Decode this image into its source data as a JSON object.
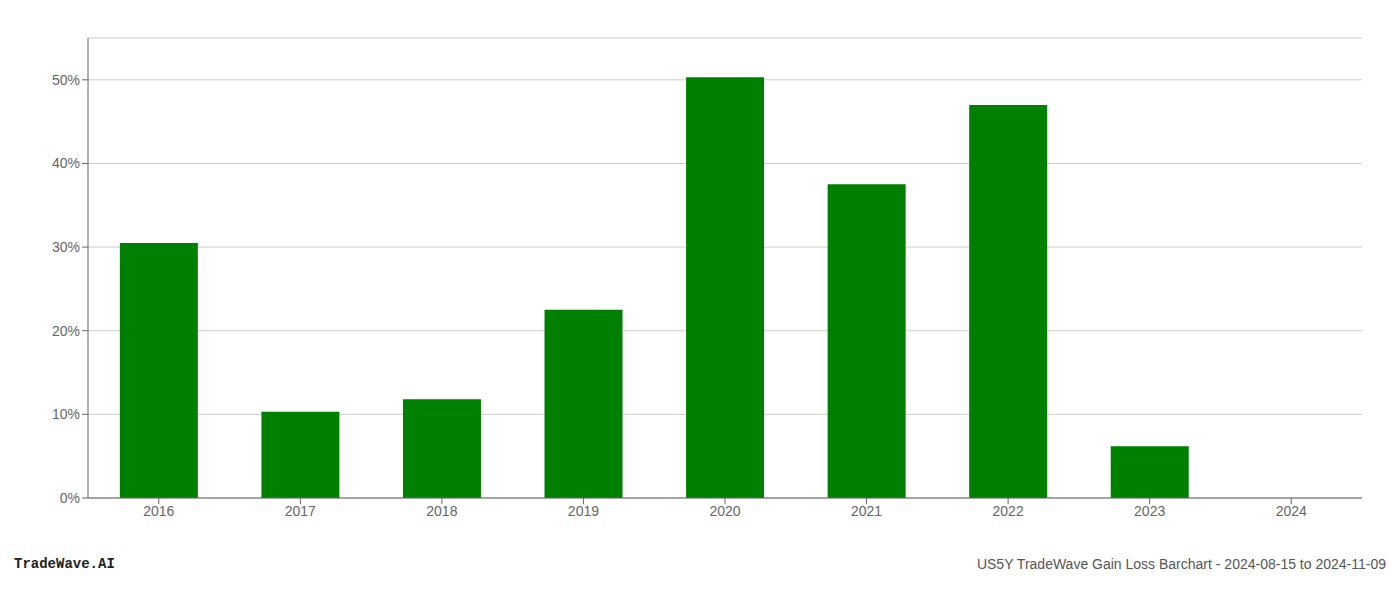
{
  "chart_data": {
    "type": "bar",
    "title": "US5Y TradeWave Gain Loss Barchart - 2024-08-15 to 2024-11-09",
    "subtitle": "TradeWave.AI",
    "categories": [
      "2016",
      "2017",
      "2018",
      "2019",
      "2020",
      "2021",
      "2022",
      "2023",
      "2024"
    ],
    "values": [
      30.5,
      10.3,
      11.8,
      22.5,
      50.3,
      37.5,
      47.0,
      6.2,
      0.0
    ],
    "color": "#008000",
    "ylim": [
      0,
      55
    ],
    "yticks": [
      {
        "value": 0,
        "label": "0%"
      },
      {
        "value": 10,
        "label": "10%"
      },
      {
        "value": 20,
        "label": "20%"
      },
      {
        "value": 30,
        "label": "30%"
      },
      {
        "value": 40,
        "label": "40%"
      },
      {
        "value": 50,
        "label": "50%"
      }
    ],
    "grid": true
  }
}
